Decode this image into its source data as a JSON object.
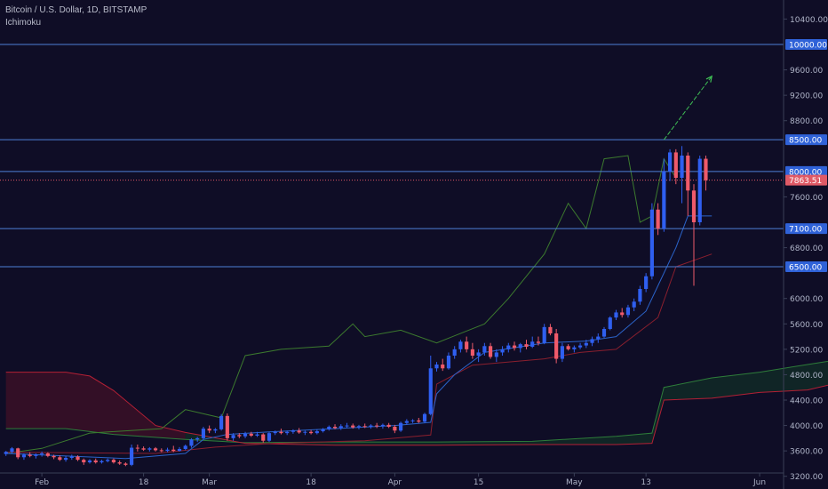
{
  "chart_data": {
    "type": "candlestick",
    "title": "Bitcoin / U.S. Dollar, 1D, BITSTAMP",
    "indicator": "Ichimoku",
    "ylim": [
      3000,
      10700
    ],
    "y_ticks": [
      3200,
      3600,
      4000,
      4400,
      4800,
      5200,
      5600,
      6000,
      6400,
      6800,
      7200,
      7600,
      8000,
      8400,
      8800,
      9200,
      9600,
      10000,
      10400
    ],
    "y_tick_labels": [
      "3200.00",
      "3600.00",
      "4000.00",
      "4400.00",
      "4800.00",
      "5200.00",
      "5600.00",
      "6000.00",
      "6400.00",
      "6800.00",
      "7200.00",
      "7600.00",
      "8000.00",
      "8400.00",
      "8800.00",
      "9200.00",
      "9600.00",
      "10000.00",
      "10400.00"
    ],
    "x_ticks": [
      {
        "date": "2019-02-01",
        "label": "Feb"
      },
      {
        "date": "2019-02-18",
        "label": "18"
      },
      {
        "date": "2019-03-01",
        "label": "Mar"
      },
      {
        "date": "2019-03-18",
        "label": "18"
      },
      {
        "date": "2019-04-01",
        "label": "Apr"
      },
      {
        "date": "2019-04-15",
        "label": "15"
      },
      {
        "date": "2019-05-01",
        "label": "May"
      },
      {
        "date": "2019-05-13",
        "label": "13"
      },
      {
        "date": "2019-06-01",
        "label": "Jun"
      }
    ],
    "x_range": [
      "2019-01-25",
      "2019-06-05"
    ],
    "grid": false,
    "horizontal_levels": [
      {
        "value": 10000,
        "label": "10000.00"
      },
      {
        "value": 8500,
        "label": "8500.00"
      },
      {
        "value": 8000,
        "label": "8000.00"
      },
      {
        "value": 7100,
        "label": "7100.00"
      },
      {
        "value": 6500,
        "label": "6500.00"
      }
    ],
    "last_price": {
      "value": 7863.51,
      "label": "7863.51"
    },
    "arrow": {
      "from": {
        "date": "2019-05-16",
        "value": 8500
      },
      "to": {
        "date": "2019-05-24",
        "value": 9500
      }
    },
    "candles_ohlc": [
      [
        3550,
        3600,
        3520,
        3585
      ],
      [
        3585,
        3660,
        3560,
        3640
      ],
      [
        3640,
        3650,
        3470,
        3500
      ],
      [
        3500,
        3560,
        3460,
        3540
      ],
      [
        3540,
        3580,
        3500,
        3520
      ],
      [
        3520,
        3560,
        3480,
        3545
      ],
      [
        3545,
        3590,
        3510,
        3560
      ],
      [
        3560,
        3580,
        3500,
        3520
      ],
      [
        3520,
        3540,
        3470,
        3500
      ],
      [
        3500,
        3530,
        3440,
        3460
      ],
      [
        3460,
        3520,
        3430,
        3490
      ],
      [
        3490,
        3540,
        3460,
        3510
      ],
      [
        3510,
        3530,
        3440,
        3460
      ],
      [
        3460,
        3480,
        3380,
        3420
      ],
      [
        3420,
        3470,
        3400,
        3450
      ],
      [
        3450,
        3480,
        3400,
        3420
      ],
      [
        3420,
        3460,
        3400,
        3440
      ],
      [
        3440,
        3480,
        3420,
        3460
      ],
      [
        3460,
        3480,
        3400,
        3420
      ],
      [
        3420,
        3450,
        3380,
        3400
      ],
      [
        3400,
        3420,
        3360,
        3380
      ],
      [
        3380,
        3700,
        3360,
        3650
      ],
      [
        3650,
        3700,
        3590,
        3640
      ],
      [
        3640,
        3670,
        3600,
        3620
      ],
      [
        3620,
        3660,
        3590,
        3640
      ],
      [
        3640,
        3660,
        3590,
        3610
      ],
      [
        3610,
        3640,
        3580,
        3600
      ],
      [
        3600,
        3650,
        3580,
        3620
      ],
      [
        3620,
        3680,
        3580,
        3600
      ],
      [
        3600,
        3660,
        3590,
        3630
      ],
      [
        3630,
        3700,
        3610,
        3680
      ],
      [
        3680,
        3800,
        3650,
        3780
      ],
      [
        3780,
        3820,
        3740,
        3800
      ],
      [
        3800,
        3980,
        3780,
        3950
      ],
      [
        3950,
        4000,
        3880,
        3920
      ],
      [
        3920,
        3960,
        3880,
        3940
      ],
      [
        3940,
        4180,
        3920,
        4150
      ],
      [
        4150,
        4190,
        3760,
        3800
      ],
      [
        3800,
        3880,
        3760,
        3850
      ],
      [
        3850,
        3880,
        3800,
        3830
      ],
      [
        3830,
        3900,
        3800,
        3870
      ],
      [
        3870,
        3900,
        3820,
        3840
      ],
      [
        3840,
        3900,
        3820,
        3860
      ],
      [
        3860,
        3880,
        3730,
        3760
      ],
      [
        3760,
        3900,
        3740,
        3880
      ],
      [
        3880,
        3920,
        3850,
        3900
      ],
      [
        3900,
        3950,
        3860,
        3880
      ],
      [
        3880,
        3920,
        3850,
        3900
      ],
      [
        3900,
        3940,
        3870,
        3920
      ],
      [
        3920,
        3960,
        3870,
        3890
      ],
      [
        3890,
        3920,
        3850,
        3900
      ],
      [
        3900,
        3930,
        3860,
        3880
      ],
      [
        3880,
        3940,
        3860,
        3910
      ],
      [
        3910,
        3960,
        3890,
        3940
      ],
      [
        3940,
        4000,
        3920,
        3980
      ],
      [
        3980,
        4020,
        3940,
        3960
      ],
      [
        3960,
        4020,
        3930,
        3990
      ],
      [
        3990,
        4040,
        3960,
        4000
      ],
      [
        4000,
        4030,
        3950,
        3970
      ],
      [
        3970,
        4010,
        3940,
        3990
      ],
      [
        3990,
        4030,
        3960,
        3980
      ],
      [
        3980,
        4020,
        3950,
        4000
      ],
      [
        4000,
        4040,
        3960,
        3990
      ],
      [
        3990,
        4030,
        3950,
        4010
      ],
      [
        4010,
        4040,
        3960,
        3980
      ],
      [
        3980,
        4010,
        3880,
        3920
      ],
      [
        3920,
        4060,
        3900,
        4040
      ],
      [
        4040,
        4100,
        4010,
        4070
      ],
      [
        4070,
        4100,
        4040,
        4080
      ],
      [
        4080,
        4120,
        4040,
        4060
      ],
      [
        4060,
        4200,
        4040,
        4180
      ],
      [
        4180,
        5100,
        4160,
        4900
      ],
      [
        4900,
        5000,
        4850,
        4960
      ],
      [
        4960,
        5050,
        4860,
        4900
      ],
      [
        4900,
        5150,
        4880,
        5100
      ],
      [
        5100,
        5250,
        5050,
        5200
      ],
      [
        5200,
        5350,
        5150,
        5320
      ],
      [
        5320,
        5400,
        5150,
        5200
      ],
      [
        5200,
        5300,
        5050,
        5100
      ],
      [
        5100,
        5200,
        5000,
        5150
      ],
      [
        5150,
        5300,
        5100,
        5250
      ],
      [
        5250,
        5300,
        5050,
        5080
      ],
      [
        5080,
        5200,
        5000,
        5150
      ],
      [
        5150,
        5250,
        5100,
        5200
      ],
      [
        5200,
        5300,
        5150,
        5260
      ],
      [
        5260,
        5320,
        5180,
        5220
      ],
      [
        5220,
        5300,
        5150,
        5280
      ],
      [
        5280,
        5350,
        5200,
        5240
      ],
      [
        5240,
        5400,
        5220,
        5320
      ],
      [
        5320,
        5400,
        5260,
        5300
      ],
      [
        5300,
        5600,
        5280,
        5550
      ],
      [
        5550,
        5600,
        5420,
        5450
      ],
      [
        5450,
        5520,
        4980,
        5050
      ],
      [
        5050,
        5300,
        5000,
        5250
      ],
      [
        5250,
        5280,
        5180,
        5200
      ],
      [
        5200,
        5260,
        5150,
        5230
      ],
      [
        5230,
        5300,
        5200,
        5260
      ],
      [
        5260,
        5350,
        5220,
        5300
      ],
      [
        5300,
        5400,
        5250,
        5360
      ],
      [
        5360,
        5450,
        5300,
        5400
      ],
      [
        5400,
        5550,
        5380,
        5520
      ],
      [
        5520,
        5720,
        5500,
        5700
      ],
      [
        5700,
        5820,
        5660,
        5780
      ],
      [
        5780,
        5850,
        5700,
        5740
      ],
      [
        5740,
        5900,
        5700,
        5860
      ],
      [
        5860,
        6000,
        5800,
        5950
      ],
      [
        5950,
        6200,
        5900,
        6150
      ],
      [
        6150,
        6400,
        6100,
        6350
      ],
      [
        6350,
        7500,
        6300,
        7400
      ],
      [
        7400,
        7500,
        7000,
        7100
      ],
      [
        7100,
        8200,
        7050,
        8000
      ],
      [
        8000,
        8350,
        7850,
        8300
      ],
      [
        8300,
        8350,
        7800,
        7900
      ],
      [
        7900,
        8400,
        7500,
        8250
      ],
      [
        8250,
        8300,
        7300,
        7700
      ],
      [
        7700,
        7800,
        6200,
        7200
      ],
      [
        7200,
        8250,
        7150,
        8200
      ],
      [
        8200,
        8250,
        7700,
        7863
      ]
    ],
    "ichimoku": {
      "tenkan": [
        [
          0,
          3560
        ],
        [
          20,
          3480
        ],
        [
          30,
          3560
        ],
        [
          33,
          3780
        ],
        [
          37,
          3860
        ],
        [
          44,
          3900
        ],
        [
          55,
          3950
        ],
        [
          65,
          4000
        ],
        [
          71,
          4050
        ],
        [
          72,
          4500
        ],
        [
          75,
          4800
        ],
        [
          80,
          5150
        ],
        [
          90,
          5300
        ],
        [
          97,
          5330
        ],
        [
          102,
          5400
        ],
        [
          107,
          5800
        ],
        [
          109,
          6200
        ],
        [
          112,
          6800
        ],
        [
          114,
          7300
        ],
        [
          118,
          7300
        ]
      ],
      "kijun": [
        [
          0,
          3580
        ],
        [
          25,
          3560
        ],
        [
          35,
          3660
        ],
        [
          45,
          3720
        ],
        [
          60,
          3760
        ],
        [
          71,
          3850
        ],
        [
          72,
          4650
        ],
        [
          78,
          4950
        ],
        [
          90,
          5050
        ],
        [
          96,
          5150
        ],
        [
          102,
          5200
        ],
        [
          109,
          5700
        ],
        [
          112,
          6500
        ],
        [
          118,
          6700
        ]
      ],
      "chikou": [
        [
          0,
          3560
        ],
        [
          6,
          3640
        ],
        [
          14,
          3880
        ],
        [
          26,
          3950
        ],
        [
          30,
          4250
        ],
        [
          36,
          4120
        ],
        [
          40,
          5100
        ],
        [
          46,
          5200
        ],
        [
          54,
          5250
        ],
        [
          58,
          5600
        ],
        [
          60,
          5400
        ],
        [
          66,
          5500
        ],
        [
          72,
          5300
        ],
        [
          80,
          5600
        ],
        [
          84,
          6000
        ],
        [
          90,
          6700
        ],
        [
          94,
          7500
        ],
        [
          97,
          7100
        ],
        [
          100,
          8200
        ],
        [
          104,
          8250
        ],
        [
          106,
          7200
        ],
        [
          108,
          7300
        ],
        [
          110,
          8200
        ],
        [
          112,
          7900
        ]
      ],
      "span_a": [
        [
          0,
          3950
        ],
        [
          10,
          3950
        ],
        [
          18,
          3860
        ],
        [
          30,
          3780
        ],
        [
          40,
          3730
        ],
        [
          55,
          3740
        ],
        [
          72,
          3740
        ],
        [
          88,
          3750
        ],
        [
          102,
          3830
        ],
        [
          108,
          3880
        ],
        [
          110,
          4600
        ],
        [
          118,
          4750
        ],
        [
          126,
          4840
        ],
        [
          134,
          4960
        ],
        [
          140,
          5050
        ],
        [
          144,
          5230
        ],
        [
          150,
          5600
        ],
        [
          154,
          6150
        ],
        [
          158,
          6600
        ],
        [
          162,
          6900
        ],
        [
          168,
          7000
        ]
      ],
      "span_b": [
        [
          0,
          4840
        ],
        [
          10,
          4840
        ],
        [
          14,
          4780
        ],
        [
          18,
          4550
        ],
        [
          25,
          4000
        ],
        [
          30,
          3890
        ],
        [
          40,
          3720
        ],
        [
          55,
          3690
        ],
        [
          72,
          3690
        ],
        [
          88,
          3700
        ],
        [
          102,
          3700
        ],
        [
          108,
          3720
        ],
        [
          110,
          4400
        ],
        [
          118,
          4430
        ],
        [
          126,
          4520
        ],
        [
          134,
          4560
        ],
        [
          140,
          4690
        ],
        [
          144,
          4760
        ],
        [
          150,
          4860
        ],
        [
          154,
          5230
        ],
        [
          158,
          6000
        ],
        [
          162,
          6120
        ],
        [
          168,
          6200
        ]
      ]
    }
  }
}
